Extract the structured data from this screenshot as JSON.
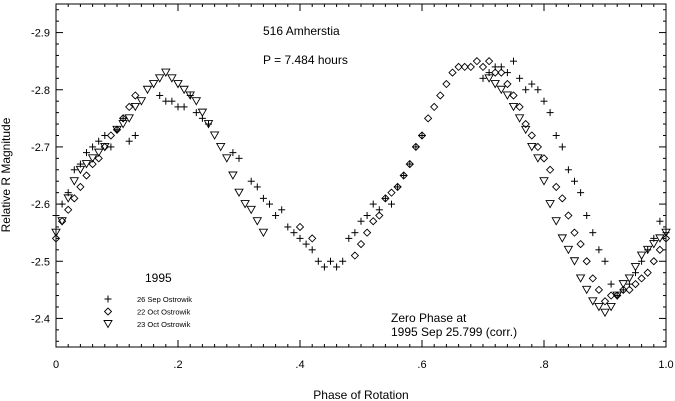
{
  "chart_data": {
    "type": "scatter",
    "title": "516 Amherstia",
    "subtitle": "P = 7.484 hours",
    "xlabel": "Phase of Rotation",
    "ylabel": "Relative R Magnitude",
    "xlim": [
      0,
      1.0
    ],
    "ylim": [
      -2.35,
      -2.95
    ],
    "y_inverted": true,
    "grid": false,
    "x_ticks": [
      0,
      0.2,
      0.4,
      0.6,
      0.8,
      1.0
    ],
    "x_tick_labels": [
      "0",
      ".2",
      ".4",
      ".6",
      ".8",
      "1.0"
    ],
    "y_ticks": [
      -2.4,
      -2.5,
      -2.6,
      -2.7,
      -2.8,
      -2.9
    ],
    "y_tick_labels": [
      "-2.4",
      "-2.5",
      "-2.6",
      "-2.7",
      "-2.8",
      "-2.9"
    ],
    "legend_title": "1995",
    "legend_placement": "bottom-left",
    "zero_phase_line1": "Zero Phase at",
    "zero_phase_line2": "1995 Sep 25.799 (corr.)",
    "series": [
      {
        "name": "26 Sep Ostrowik",
        "marker": "plus",
        "points": [
          [
            0.0,
            -2.58
          ],
          [
            0.01,
            -2.6
          ],
          [
            0.02,
            -2.62
          ],
          [
            0.03,
            -2.66
          ],
          [
            0.04,
            -2.67
          ],
          [
            0.05,
            -2.69
          ],
          [
            0.06,
            -2.7
          ],
          [
            0.07,
            -2.71
          ],
          [
            0.08,
            -2.72
          ],
          [
            0.09,
            -2.7
          ],
          [
            0.1,
            -2.73
          ],
          [
            0.11,
            -2.75
          ],
          [
            0.12,
            -2.71
          ],
          [
            0.13,
            -2.72
          ],
          [
            0.17,
            -2.79
          ],
          [
            0.18,
            -2.78
          ],
          [
            0.19,
            -2.78
          ],
          [
            0.2,
            -2.77
          ],
          [
            0.21,
            -2.77
          ],
          [
            0.22,
            -2.79
          ],
          [
            0.23,
            -2.76
          ],
          [
            0.24,
            -2.75
          ],
          [
            0.25,
            -2.74
          ],
          [
            0.29,
            -2.69
          ],
          [
            0.3,
            -2.68
          ],
          [
            0.32,
            -2.64
          ],
          [
            0.33,
            -2.63
          ],
          [
            0.34,
            -2.61
          ],
          [
            0.35,
            -2.6
          ],
          [
            0.36,
            -2.58
          ],
          [
            0.37,
            -2.59
          ],
          [
            0.38,
            -2.56
          ],
          [
            0.39,
            -2.55
          ],
          [
            0.4,
            -2.54
          ],
          [
            0.41,
            -2.53
          ],
          [
            0.42,
            -2.52
          ],
          [
            0.43,
            -2.5
          ],
          [
            0.44,
            -2.49
          ],
          [
            0.45,
            -2.5
          ],
          [
            0.46,
            -2.49
          ],
          [
            0.47,
            -2.5
          ],
          [
            0.48,
            -2.54
          ],
          [
            0.49,
            -2.55
          ],
          [
            0.5,
            -2.57
          ],
          [
            0.51,
            -2.58
          ],
          [
            0.52,
            -2.6
          ],
          [
            0.53,
            -2.59
          ],
          [
            0.54,
            -2.61
          ],
          [
            0.55,
            -2.6
          ],
          [
            0.56,
            -2.63
          ],
          [
            0.57,
            -2.65
          ],
          [
            0.58,
            -2.67
          ],
          [
            0.59,
            -2.7
          ],
          [
            0.6,
            -2.72
          ],
          [
            0.7,
            -2.82
          ],
          [
            0.71,
            -2.83
          ],
          [
            0.72,
            -2.84
          ],
          [
            0.73,
            -2.84
          ],
          [
            0.74,
            -2.83
          ],
          [
            0.75,
            -2.85
          ],
          [
            0.76,
            -2.82
          ],
          [
            0.77,
            -2.8
          ],
          [
            0.78,
            -2.81
          ],
          [
            0.79,
            -2.8
          ],
          [
            0.8,
            -2.78
          ],
          [
            0.81,
            -2.76
          ],
          [
            0.82,
            -2.72
          ],
          [
            0.83,
            -2.7
          ],
          [
            0.84,
            -2.66
          ],
          [
            0.85,
            -2.64
          ],
          [
            0.86,
            -2.62
          ],
          [
            0.87,
            -2.58
          ],
          [
            0.88,
            -2.55
          ],
          [
            0.89,
            -2.52
          ],
          [
            0.9,
            -2.5
          ],
          [
            0.91,
            -2.46
          ],
          [
            0.92,
            -2.44
          ],
          [
            0.93,
            -2.45
          ],
          [
            0.94,
            -2.46
          ],
          [
            0.95,
            -2.48
          ],
          [
            0.96,
            -2.5
          ],
          [
            0.97,
            -2.52
          ],
          [
            0.98,
            -2.54
          ],
          [
            0.99,
            -2.57
          ],
          [
            1.0,
            -2.55
          ]
        ]
      },
      {
        "name": "22 Oct Ostrowik",
        "marker": "diamond",
        "points": [
          [
            0.0,
            -2.54
          ],
          [
            0.01,
            -2.57
          ],
          [
            0.02,
            -2.59
          ],
          [
            0.03,
            -2.61
          ],
          [
            0.04,
            -2.63
          ],
          [
            0.05,
            -2.65
          ],
          [
            0.06,
            -2.67
          ],
          [
            0.07,
            -2.68
          ],
          [
            0.08,
            -2.7
          ],
          [
            0.09,
            -2.72
          ],
          [
            0.1,
            -2.73
          ],
          [
            0.11,
            -2.75
          ],
          [
            0.12,
            -2.77
          ],
          [
            0.13,
            -2.79
          ],
          [
            0.4,
            -2.56
          ],
          [
            0.42,
            -2.54
          ],
          [
            0.49,
            -2.51
          ],
          [
            0.5,
            -2.53
          ],
          [
            0.51,
            -2.55
          ],
          [
            0.52,
            -2.57
          ],
          [
            0.53,
            -2.58
          ],
          [
            0.54,
            -2.61
          ],
          [
            0.55,
            -2.62
          ],
          [
            0.56,
            -2.63
          ],
          [
            0.57,
            -2.65
          ],
          [
            0.58,
            -2.67
          ],
          [
            0.59,
            -2.7
          ],
          [
            0.6,
            -2.72
          ],
          [
            0.61,
            -2.75
          ],
          [
            0.62,
            -2.77
          ],
          [
            0.63,
            -2.79
          ],
          [
            0.64,
            -2.81
          ],
          [
            0.65,
            -2.83
          ],
          [
            0.66,
            -2.84
          ],
          [
            0.67,
            -2.84
          ],
          [
            0.68,
            -2.84
          ],
          [
            0.69,
            -2.85
          ],
          [
            0.7,
            -2.84
          ],
          [
            0.71,
            -2.85
          ],
          [
            0.72,
            -2.83
          ],
          [
            0.73,
            -2.83
          ],
          [
            0.74,
            -2.81
          ],
          [
            0.75,
            -2.79
          ],
          [
            0.76,
            -2.77
          ],
          [
            0.77,
            -2.74
          ],
          [
            0.78,
            -2.72
          ],
          [
            0.79,
            -2.7
          ],
          [
            0.8,
            -2.68
          ],
          [
            0.81,
            -2.66
          ],
          [
            0.82,
            -2.63
          ],
          [
            0.83,
            -2.61
          ],
          [
            0.84,
            -2.58
          ],
          [
            0.85,
            -2.55
          ],
          [
            0.86,
            -2.53
          ],
          [
            0.87,
            -2.5
          ],
          [
            0.88,
            -2.47
          ],
          [
            0.89,
            -2.45
          ],
          [
            0.9,
            -2.43
          ],
          [
            0.91,
            -2.44
          ],
          [
            0.92,
            -2.44
          ],
          [
            0.93,
            -2.45
          ],
          [
            0.94,
            -2.45
          ],
          [
            0.95,
            -2.46
          ],
          [
            0.96,
            -2.47
          ],
          [
            0.97,
            -2.48
          ],
          [
            0.98,
            -2.5
          ],
          [
            0.99,
            -2.52
          ],
          [
            1.0,
            -2.54
          ]
        ]
      },
      {
        "name": "23 Oct Ostrowik",
        "marker": "triangle-down",
        "points": [
          [
            0.0,
            -2.55
          ],
          [
            0.01,
            -2.57
          ],
          [
            0.02,
            -2.61
          ],
          [
            0.03,
            -2.64
          ],
          [
            0.04,
            -2.66
          ],
          [
            0.05,
            -2.67
          ],
          [
            0.06,
            -2.68
          ],
          [
            0.07,
            -2.69
          ],
          [
            0.08,
            -2.7
          ],
          [
            0.1,
            -2.73
          ],
          [
            0.11,
            -2.74
          ],
          [
            0.12,
            -2.75
          ],
          [
            0.13,
            -2.77
          ],
          [
            0.14,
            -2.78
          ],
          [
            0.15,
            -2.8
          ],
          [
            0.16,
            -2.81
          ],
          [
            0.17,
            -2.82
          ],
          [
            0.18,
            -2.83
          ],
          [
            0.19,
            -2.82
          ],
          [
            0.2,
            -2.81
          ],
          [
            0.21,
            -2.8
          ],
          [
            0.22,
            -2.79
          ],
          [
            0.23,
            -2.78
          ],
          [
            0.24,
            -2.76
          ],
          [
            0.25,
            -2.74
          ],
          [
            0.26,
            -2.72
          ],
          [
            0.27,
            -2.7
          ],
          [
            0.28,
            -2.68
          ],
          [
            0.29,
            -2.65
          ],
          [
            0.3,
            -2.62
          ],
          [
            0.31,
            -2.6
          ],
          [
            0.32,
            -2.59
          ],
          [
            0.33,
            -2.57
          ],
          [
            0.34,
            -2.55
          ],
          [
            0.71,
            -2.82
          ],
          [
            0.72,
            -2.81
          ],
          [
            0.73,
            -2.8
          ],
          [
            0.74,
            -2.79
          ],
          [
            0.75,
            -2.77
          ],
          [
            0.76,
            -2.75
          ],
          [
            0.77,
            -2.73
          ],
          [
            0.78,
            -2.7
          ],
          [
            0.79,
            -2.68
          ],
          [
            0.8,
            -2.64
          ],
          [
            0.81,
            -2.6
          ],
          [
            0.82,
            -2.57
          ],
          [
            0.83,
            -2.54
          ],
          [
            0.84,
            -2.52
          ],
          [
            0.85,
            -2.5
          ],
          [
            0.86,
            -2.47
          ],
          [
            0.87,
            -2.45
          ],
          [
            0.88,
            -2.43
          ],
          [
            0.89,
            -2.42
          ],
          [
            0.9,
            -2.41
          ],
          [
            0.91,
            -2.42
          ],
          [
            0.92,
            -2.44
          ],
          [
            0.93,
            -2.46
          ],
          [
            0.94,
            -2.47
          ],
          [
            0.95,
            -2.49
          ],
          [
            0.96,
            -2.51
          ],
          [
            0.97,
            -2.52
          ],
          [
            0.98,
            -2.53
          ],
          [
            0.99,
            -2.54
          ],
          [
            1.0,
            -2.55
          ]
        ]
      }
    ]
  }
}
